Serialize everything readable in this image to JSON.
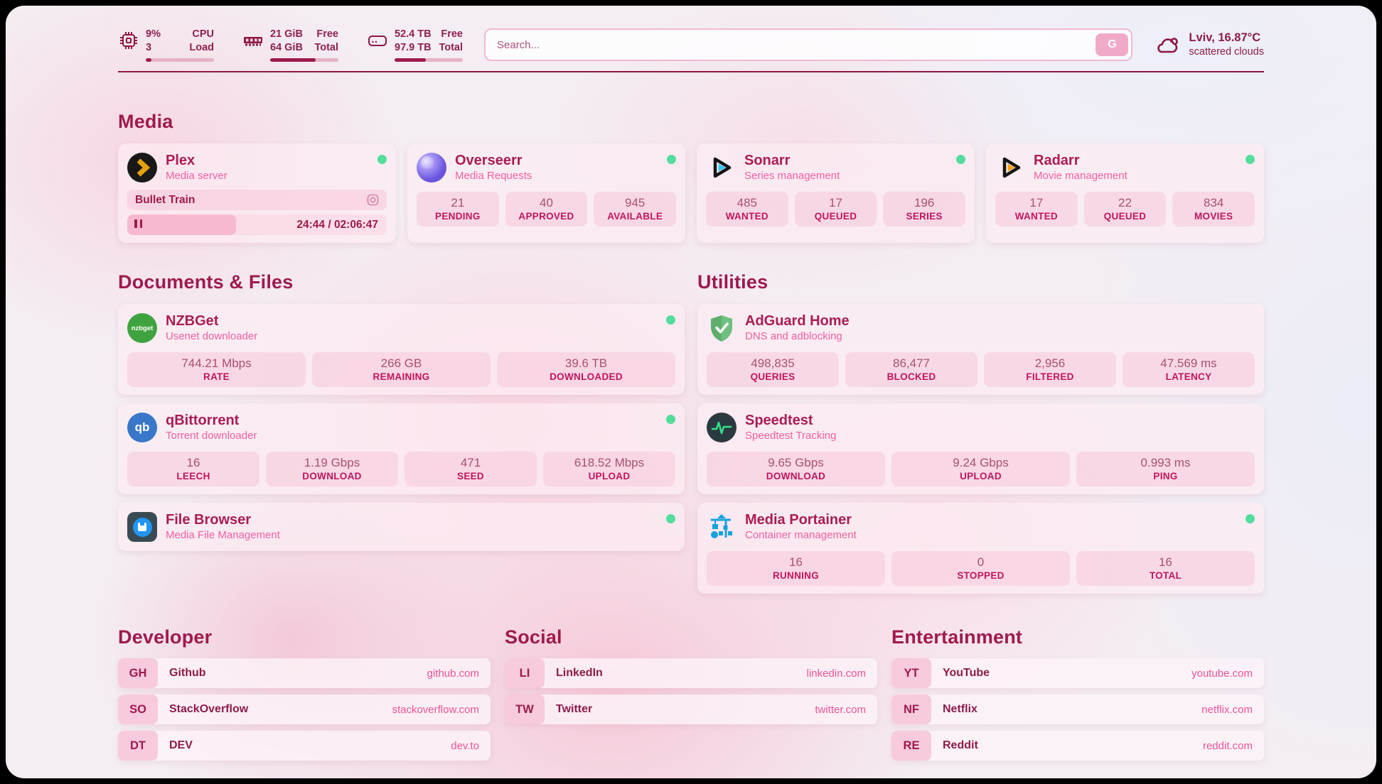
{
  "theme": {
    "accent": "#9e1a4d",
    "subtitle_pink": "#ee61a0",
    "status_green": "#52dd9b",
    "link_pink": "#e9539a"
  },
  "header": {
    "cpu": {
      "value_top": "9%",
      "value_bottom": "3",
      "label_top": "CPU",
      "label_bottom": "Load",
      "bar_pct": 8
    },
    "memory": {
      "value_top": "21 GiB",
      "value_bottom": "64 GiB",
      "label_top": "Free",
      "label_bottom": "Total",
      "bar_pct": 67
    },
    "disk": {
      "value_top": "52.4 TB",
      "value_bottom": "97.9 TB",
      "label_top": "Free",
      "label_bottom": "Total",
      "bar_pct": 46
    },
    "search": {
      "placeholder": "Search...",
      "button_label": "G"
    },
    "weather": {
      "location": "Lviv, 16.87°C",
      "condition": "scattered clouds"
    }
  },
  "media": {
    "title": "Media",
    "apps": [
      {
        "name": "Plex",
        "description": "Media server",
        "now_playing": {
          "title": "Bullet Train",
          "time": "24:44 / 02:06:47"
        }
      },
      {
        "name": "Overseerr",
        "description": "Media Requests",
        "stats": [
          {
            "value": "21",
            "label": "PENDING"
          },
          {
            "value": "40",
            "label": "APPROVED"
          },
          {
            "value": "945",
            "label": "AVAILABLE"
          }
        ]
      },
      {
        "name": "Sonarr",
        "description": "Series management",
        "stats": [
          {
            "value": "485",
            "label": "WANTED"
          },
          {
            "value": "17",
            "label": "QUEUED"
          },
          {
            "value": "196",
            "label": "SERIES"
          }
        ]
      },
      {
        "name": "Radarr",
        "description": "Movie management",
        "stats": [
          {
            "value": "17",
            "label": "WANTED"
          },
          {
            "value": "22",
            "label": "QUEUED"
          },
          {
            "value": "834",
            "label": "MOVIES"
          }
        ]
      }
    ]
  },
  "documents": {
    "title": "Documents & Files",
    "apps": [
      {
        "name": "NZBGet",
        "description": "Usenet downloader",
        "icon_text": "nzbget",
        "stats": [
          {
            "value": "744.21 Mbps",
            "label": "RATE"
          },
          {
            "value": "266 GB",
            "label": "REMAINING"
          },
          {
            "value": "39.6 TB",
            "label": "DOWNLOADED"
          }
        ]
      },
      {
        "name": "qBittorrent",
        "description": "Torrent downloader",
        "icon_text": "qb",
        "stats": [
          {
            "value": "16",
            "label": "LEECH"
          },
          {
            "value": "1.19 Gbps",
            "label": "DOWNLOAD"
          },
          {
            "value": "471",
            "label": "SEED"
          },
          {
            "value": "618.52 Mbps",
            "label": "UPLOAD"
          }
        ]
      },
      {
        "name": "File Browser",
        "description": "Media File Management"
      }
    ]
  },
  "utilities": {
    "title": "Utilities",
    "apps": [
      {
        "name": "AdGuard Home",
        "description": "DNS and adblocking",
        "stats": [
          {
            "value": "498,835",
            "label": "QUERIES"
          },
          {
            "value": "86,477",
            "label": "BLOCKED"
          },
          {
            "value": "2,956",
            "label": "FILTERED"
          },
          {
            "value": "47.569 ms",
            "label": "LATENCY"
          }
        ]
      },
      {
        "name": "Speedtest",
        "description": "Speedtest Tracking",
        "stats": [
          {
            "value": "9.65 Gbps",
            "label": "DOWNLOAD"
          },
          {
            "value": "9.24 Gbps",
            "label": "UPLOAD"
          },
          {
            "value": "0.993 ms",
            "label": "PING"
          }
        ]
      },
      {
        "name": "Media Portainer",
        "description": "Container management",
        "stats": [
          {
            "value": "16",
            "label": "RUNNING"
          },
          {
            "value": "0",
            "label": "STOPPED"
          },
          {
            "value": "16",
            "label": "TOTAL"
          }
        ]
      }
    ]
  },
  "links": {
    "developer": {
      "title": "Developer",
      "items": [
        {
          "badge": "GH",
          "name": "Github",
          "url": "github.com"
        },
        {
          "badge": "SO",
          "name": "StackOverflow",
          "url": "stackoverflow.com"
        },
        {
          "badge": "DT",
          "name": "DEV",
          "url": "dev.to"
        }
      ]
    },
    "social": {
      "title": "Social",
      "items": [
        {
          "badge": "LI",
          "name": "LinkedIn",
          "url": "linkedin.com"
        },
        {
          "badge": "TW",
          "name": "Twitter",
          "url": "twitter.com"
        }
      ]
    },
    "entertainment": {
      "title": "Entertainment",
      "items": [
        {
          "badge": "YT",
          "name": "YouTube",
          "url": "youtube.com"
        },
        {
          "badge": "NF",
          "name": "Netflix",
          "url": "netflix.com"
        },
        {
          "badge": "RE",
          "name": "Reddit",
          "url": "reddit.com"
        }
      ]
    }
  }
}
